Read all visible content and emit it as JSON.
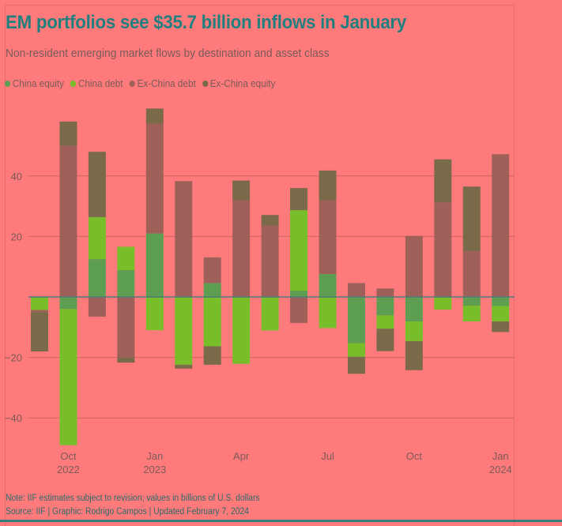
{
  "header": {
    "title": "EM portfolios see $35.7 billion inflows in January",
    "subtitle": "Non-resident emerging market flows by destination and asset class"
  },
  "legend": [
    {
      "label": "China equity",
      "color": "#5e9e52"
    },
    {
      "label": "China debt",
      "color": "#78be2a"
    },
    {
      "label": "Ex-China debt",
      "color": "#a0605a"
    },
    {
      "label": "Ex-China equity",
      "color": "#7a6a4a"
    }
  ],
  "footer": {
    "note": "Note: IIF estimates subject to revision; values in billions of U.S. dollars",
    "source": "Source: IIF | Graphic: Rodrigo Campos | Updated February 7, 2024"
  },
  "chart_data": {
    "type": "bar",
    "stacked": true,
    "title": "EM portfolios see $35.7 billion inflows in January",
    "subtitle": "Non-resident emerging market flows by destination and asset class",
    "xlabel": "",
    "ylabel": "",
    "ylim": [
      -50,
      65
    ],
    "yticks": [
      40,
      20,
      -20,
      -40
    ],
    "grid": true,
    "legend_position": "top-left",
    "categories": [
      "Sep 2022",
      "Oct 2022",
      "Nov 2022",
      "Dec 2022",
      "Jan 2023",
      "Feb 2023",
      "Mar 2023",
      "Apr 2023",
      "May 2023",
      "Jun 2023",
      "Jul 2023",
      "Aug 2023",
      "Sep 2023",
      "Oct 2023",
      "Nov 2023",
      "Dec 2023",
      "Jan 2024"
    ],
    "xtick_labels": [
      {
        "category": "Oct 2022",
        "line1": "Oct",
        "line2": "2022"
      },
      {
        "category": "Jan 2023",
        "line1": "Jan",
        "line2": "2023"
      },
      {
        "category": "Apr 2023",
        "line1": "Apr",
        "line2": ""
      },
      {
        "category": "Jul 2023",
        "line1": "Jul",
        "line2": ""
      },
      {
        "category": "Oct 2023",
        "line1": "Oct",
        "line2": ""
      },
      {
        "category": "Jan 2024",
        "line1": "Jan",
        "line2": "2024"
      }
    ],
    "series": [
      {
        "name": "China equity",
        "color": "#5e9e52",
        "values": [
          0,
          -4,
          12.5,
          8.9,
          21,
          0,
          4.6,
          0,
          0,
          2.1,
          7.6,
          -15.3,
          -6.1,
          -8.1,
          0,
          -2.9,
          -3
        ]
      },
      {
        "name": "China debt",
        "color": "#78be2a",
        "values": [
          -4.3,
          -45,
          13.9,
          7.7,
          -11,
          -22.4,
          -16.3,
          -22.1,
          -11.1,
          26.6,
          -10.3,
          -4.5,
          -4.4,
          -6.5,
          -4.2,
          -5.2,
          -5.1
        ]
      },
      {
        "name": "Ex-China debt",
        "color": "#a0605a",
        "values": [
          -0.7,
          50,
          -6.5,
          -20,
          36.3,
          38.3,
          8.5,
          31.9,
          23.6,
          -8.6,
          24.4,
          4.6,
          2.8,
          20.2,
          31.3,
          15.1,
          47.2
        ]
      },
      {
        "name": "Ex-China equity",
        "color": "#7a6a4a",
        "values": [
          -13,
          8,
          21.6,
          -1.7,
          5,
          -1.3,
          -6.1,
          6.6,
          3.5,
          7.3,
          9.8,
          -5.6,
          -7.4,
          -9.6,
          14.2,
          21.4,
          -3.5
        ]
      }
    ]
  }
}
